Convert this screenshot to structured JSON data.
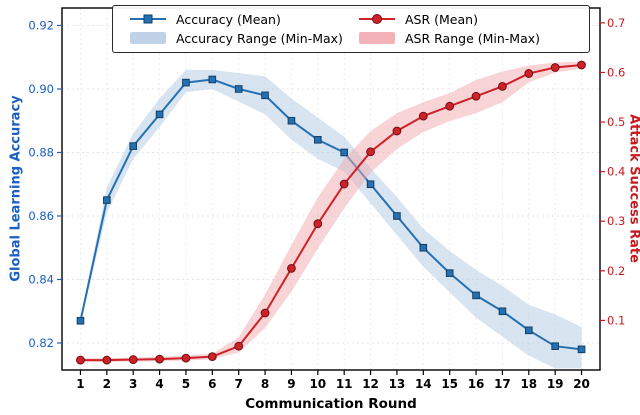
{
  "figure": {
    "xlabel": "Communication Round",
    "left_ylabel": "Global Learning Accuracy",
    "right_ylabel": "Attack Success Rate"
  },
  "chart_data": {
    "type": "line",
    "title": "",
    "xlabel": "Communication Round",
    "left_ylabel": "Global Learning Accuracy",
    "right_ylabel": "Attack Success Rate",
    "grid": true,
    "legend_position": "upper center",
    "x": [
      1,
      2,
      3,
      4,
      5,
      6,
      7,
      8,
      9,
      10,
      11,
      12,
      13,
      14,
      15,
      16,
      17,
      18,
      19,
      20
    ],
    "x_tick_labels": [
      "1",
      "2",
      "3",
      "4",
      "5",
      "6",
      "7",
      "8",
      "9",
      "10",
      "11",
      "12",
      "13",
      "14",
      "15",
      "16",
      "17",
      "18",
      "19",
      "20"
    ],
    "xlim": [
      0.3,
      20.7
    ],
    "left_ylim": [
      0.8115,
      0.9255
    ],
    "right_ylim": [
      0.0,
      0.73
    ],
    "left_ticks": [
      0.82,
      0.84,
      0.86,
      0.88,
      0.9,
      0.92
    ],
    "left_tick_labels": [
      "0.82",
      "0.84",
      "0.86",
      "0.88",
      "0.90",
      "0.92"
    ],
    "right_ticks": [
      0.1,
      0.2,
      0.3,
      0.4,
      0.5,
      0.6,
      0.7
    ],
    "right_tick_labels": [
      "0.1",
      "0.2",
      "0.3",
      "0.4",
      "0.5",
      "0.6",
      "0.7"
    ],
    "left_axis_color": "#1b5fc0",
    "right_axis_color": "#c8191f",
    "series": [
      {
        "name": "Accuracy (Mean)",
        "axis": "left",
        "marker": "square",
        "color": "#2470b3",
        "marker_edge": "#123f66",
        "values": [
          0.827,
          0.865,
          0.882,
          0.892,
          0.902,
          0.903,
          0.9,
          0.898,
          0.89,
          0.884,
          0.88,
          0.87,
          0.86,
          0.85,
          0.842,
          0.835,
          0.83,
          0.824,
          0.819,
          0.818
        ],
        "band": {
          "name": "Accuracy Range (Min-Max)",
          "color": "#b8cde4",
          "opacity": 0.55,
          "max": [
            0.828,
            0.869,
            0.886,
            0.897,
            0.906,
            0.906,
            0.905,
            0.904,
            0.897,
            0.891,
            0.885,
            0.875,
            0.866,
            0.856,
            0.849,
            0.843,
            0.838,
            0.832,
            0.829,
            0.825
          ],
          "min": [
            0.826,
            0.861,
            0.878,
            0.888,
            0.899,
            0.9,
            0.896,
            0.892,
            0.884,
            0.878,
            0.874,
            0.864,
            0.854,
            0.844,
            0.836,
            0.828,
            0.822,
            0.816,
            0.812,
            0.812
          ]
        }
      },
      {
        "name": "ASR (Mean)",
        "axis": "right",
        "marker": "circle",
        "color": "#cf2128",
        "marker_edge": "#6e0f14",
        "values": [
          0.02,
          0.02,
          0.021,
          0.022,
          0.024,
          0.027,
          0.048,
          0.115,
          0.205,
          0.295,
          0.375,
          0.44,
          0.482,
          0.512,
          0.532,
          0.552,
          0.572,
          0.598,
          0.61,
          0.615
        ],
        "band": {
          "name": "ASR Range (Min-Max)",
          "color": "#f2aab0",
          "opacity": 0.5,
          "max": [
            0.024,
            0.024,
            0.025,
            0.027,
            0.029,
            0.033,
            0.066,
            0.152,
            0.252,
            0.348,
            0.425,
            0.482,
            0.518,
            0.54,
            0.558,
            0.585,
            0.602,
            0.614,
            0.62,
            0.622
          ],
          "min": [
            0.016,
            0.016,
            0.017,
            0.018,
            0.019,
            0.022,
            0.035,
            0.085,
            0.158,
            0.245,
            0.326,
            0.398,
            0.446,
            0.48,
            0.502,
            0.518,
            0.54,
            0.58,
            0.6,
            0.608
          ]
        }
      }
    ]
  }
}
